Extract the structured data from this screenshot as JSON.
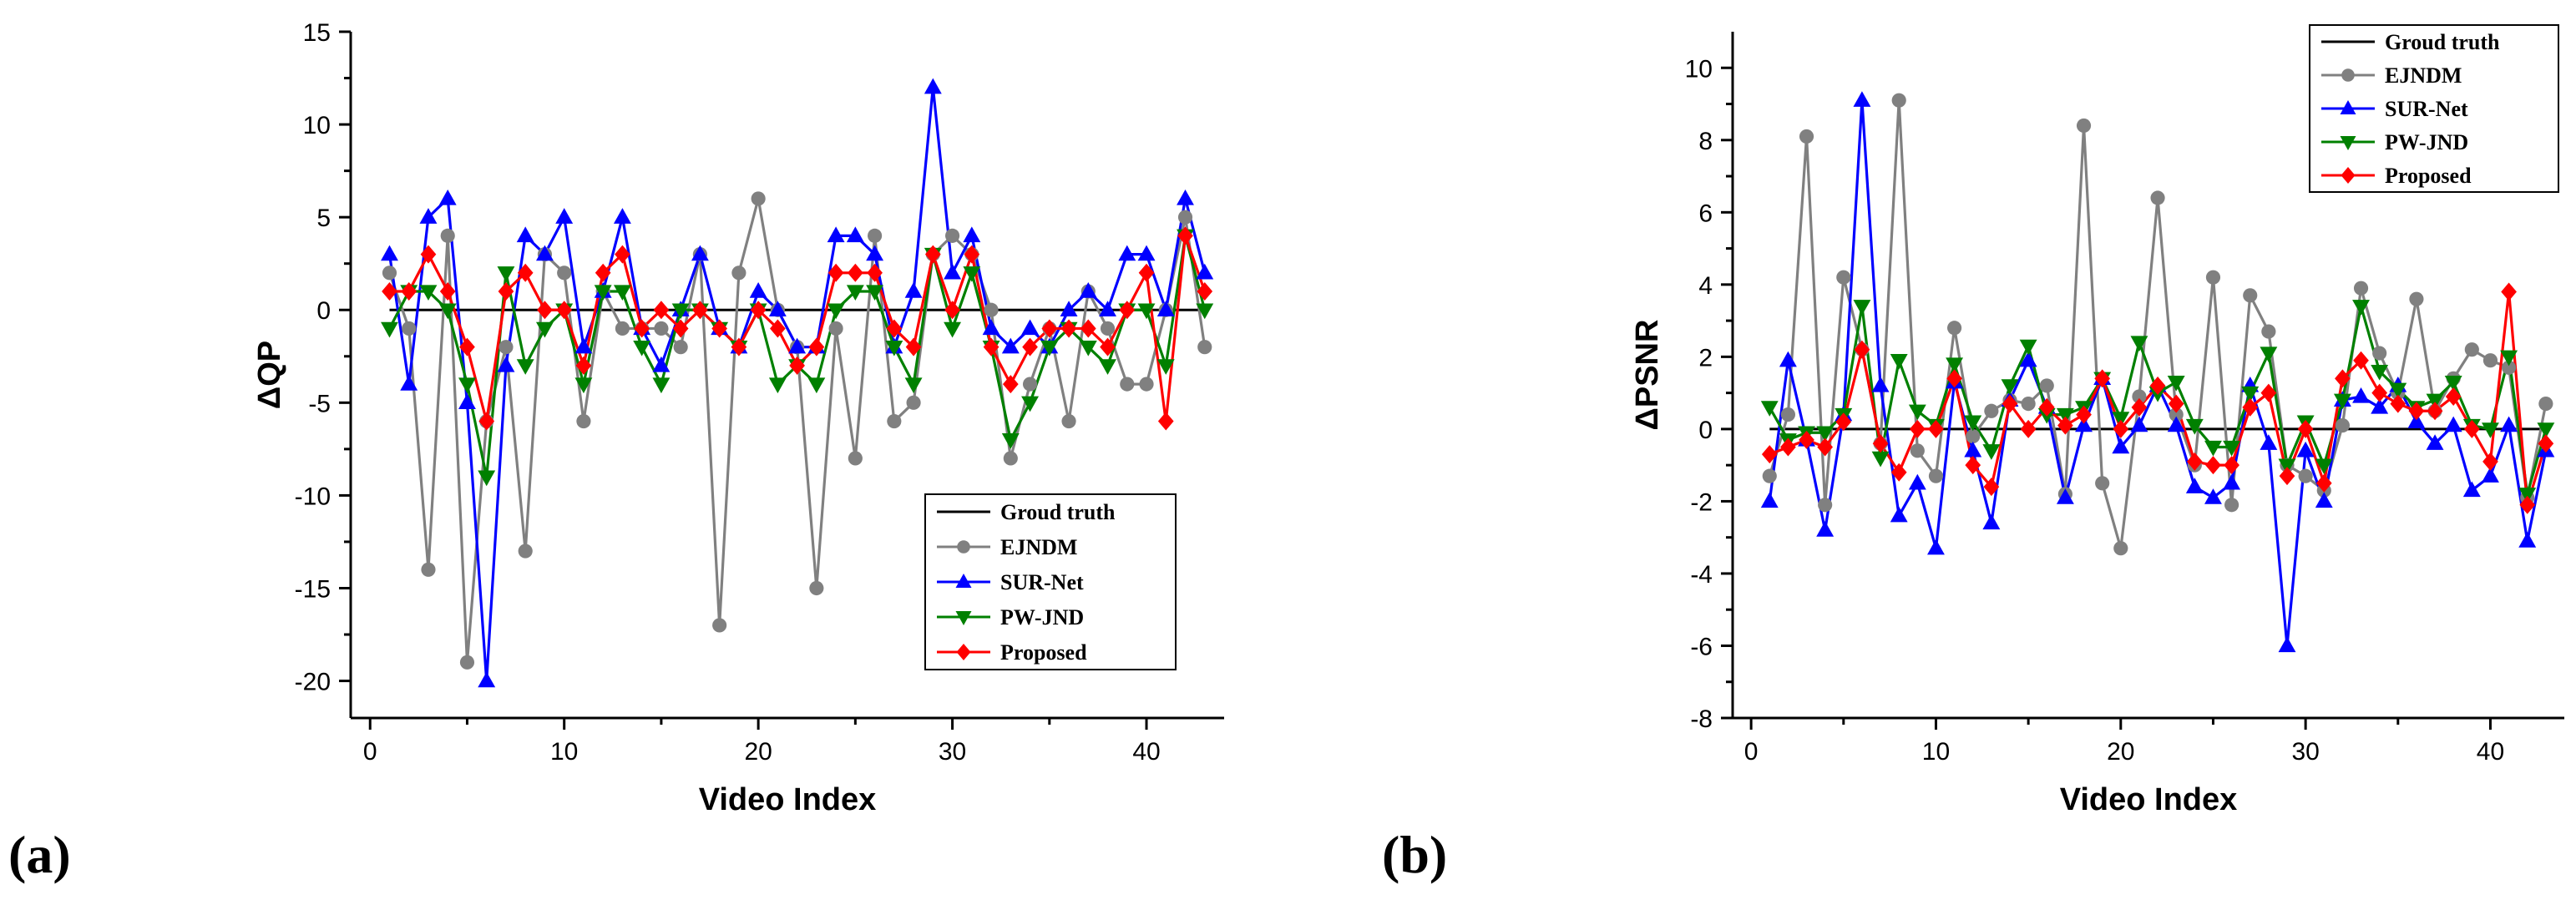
{
  "panels": [
    {
      "label": "(a)"
    },
    {
      "label": "(b)"
    }
  ],
  "chart_data": [
    {
      "type": "line",
      "panel": "(a)",
      "xlabel": "Video Index",
      "ylabel": "ΔQP",
      "xlim": [
        -1,
        44
      ],
      "ylim": [
        -22,
        15
      ],
      "xticks": [
        0,
        10,
        20,
        30,
        40
      ],
      "yticks": [
        15,
        10,
        5,
        0,
        -5,
        -10,
        -15,
        -20
      ],
      "legend_position": "bottom-right",
      "x": [
        1,
        2,
        3,
        4,
        5,
        6,
        7,
        8,
        9,
        10,
        11,
        12,
        13,
        14,
        15,
        16,
        17,
        18,
        19,
        20,
        21,
        22,
        23,
        24,
        25,
        26,
        27,
        28,
        29,
        30,
        31,
        32,
        33,
        34,
        35,
        36,
        37,
        38,
        39,
        40,
        41,
        42,
        43
      ],
      "ground_truth": {
        "name": "Groud truth",
        "value": 0,
        "x_range": [
          1,
          43
        ],
        "color": "#000000"
      },
      "series": [
        {
          "name": "EJNDM",
          "marker": "circle",
          "color": "#808080",
          "values": [
            2,
            -1,
            -14,
            4,
            -19,
            -6,
            -2,
            -13,
            3,
            2,
            -6,
            1,
            -1,
            -1,
            -1,
            -2,
            3,
            -17,
            2,
            6,
            0,
            -2,
            -15,
            -1,
            -8,
            4,
            -6,
            -5,
            3,
            4,
            3,
            0,
            -8,
            -4,
            -1,
            -6,
            1,
            -1,
            -4,
            -4,
            0,
            5,
            -2
          ]
        },
        {
          "name": "SUR-Net",
          "marker": "triangle-up",
          "color": "#0000FF",
          "values": [
            3,
            -4,
            5,
            6,
            -5,
            -20,
            -3,
            4,
            3,
            5,
            -2,
            1,
            5,
            -1,
            -3,
            0,
            3,
            -1,
            -2,
            1,
            0,
            -2,
            -2,
            4,
            4,
            3,
            -2,
            1,
            12,
            2,
            4,
            -1,
            -2,
            -1,
            -2,
            0,
            1,
            0,
            3,
            3,
            0,
            6,
            2
          ]
        },
        {
          "name": "PW-JND",
          "marker": "triangle-down",
          "color": "#008000",
          "values": [
            -1,
            1,
            1,
            0,
            -4,
            -9,
            2,
            -3,
            -1,
            0,
            -4,
            1,
            1,
            -2,
            -4,
            0,
            0,
            -1,
            -2,
            0,
            -4,
            -3,
            -4,
            0,
            1,
            1,
            -2,
            -4,
            3,
            -1,
            2,
            -2,
            -7,
            -5,
            -2,
            -1,
            -2,
            -3,
            0,
            0,
            -3,
            4,
            0
          ]
        },
        {
          "name": "Proposed",
          "marker": "diamond",
          "color": "#FF0000",
          "values": [
            1,
            1,
            3,
            1,
            -2,
            -6,
            1,
            2,
            0,
            0,
            -3,
            2,
            3,
            -1,
            0,
            -1,
            0,
            -1,
            -2,
            0,
            -1,
            -3,
            -2,
            2,
            2,
            2,
            -1,
            -2,
            3,
            0,
            3,
            -2,
            -4,
            -2,
            -1,
            -1,
            -1,
            -2,
            0,
            2,
            -6,
            4,
            1
          ]
        }
      ]
    },
    {
      "type": "line",
      "panel": "(b)",
      "xlabel": "Video Index",
      "ylabel": "ΔPSNR",
      "xlim": [
        -1,
        44
      ],
      "ylim": [
        -8,
        11
      ],
      "xticks": [
        0,
        10,
        20,
        30,
        40
      ],
      "yticks": [
        10,
        8,
        6,
        4,
        2,
        0,
        -2,
        -4,
        -6,
        -8
      ],
      "legend_position": "top-right",
      "x": [
        1,
        2,
        3,
        4,
        5,
        6,
        7,
        8,
        9,
        10,
        11,
        12,
        13,
        14,
        15,
        16,
        17,
        18,
        19,
        20,
        21,
        22,
        23,
        24,
        25,
        26,
        27,
        28,
        29,
        30,
        31,
        32,
        33,
        34,
        35,
        36,
        37,
        38,
        39,
        40,
        41,
        42,
        43
      ],
      "ground_truth": {
        "name": "Groud truth",
        "value": 0,
        "x_range": [
          1,
          43
        ],
        "color": "#000000"
      },
      "series": [
        {
          "name": "EJNDM",
          "marker": "circle",
          "color": "#808080",
          "values": [
            -1.3,
            0.4,
            8.1,
            -2.1,
            4.2,
            2.2,
            -0.4,
            9.1,
            -0.6,
            -1.3,
            2.8,
            -0.2,
            0.5,
            0.8,
            0.7,
            1.2,
            -1.8,
            8.4,
            -1.5,
            -3.3,
            0.9,
            6.4,
            0.4,
            -1.0,
            4.2,
            -2.1,
            3.7,
            2.7,
            -1.0,
            -1.3,
            -1.7,
            0.1,
            3.9,
            2.1,
            1.0,
            3.6,
            0.5,
            1.4,
            2.2,
            1.9,
            1.7,
            -1.9,
            0.7
          ]
        },
        {
          "name": "SUR-Net",
          "marker": "triangle-up",
          "color": "#0000FF",
          "values": [
            -2.0,
            1.9,
            -0.3,
            -2.8,
            0.4,
            9.1,
            1.2,
            -2.4,
            -1.5,
            -3.3,
            1.3,
            -0.6,
            -2.6,
            0.8,
            1.9,
            0.6,
            -1.9,
            0.1,
            1.4,
            -0.5,
            0.1,
            1.2,
            0.1,
            -1.6,
            -1.9,
            -1.5,
            1.2,
            -0.4,
            -6.0,
            -0.6,
            -2.0,
            0.8,
            0.9,
            0.6,
            1.2,
            0.2,
            -0.4,
            0.1,
            -1.7,
            -1.3,
            0.1,
            -3.1,
            -0.6
          ]
        },
        {
          "name": "PW-JND",
          "marker": "triangle-down",
          "color": "#008000",
          "values": [
            0.6,
            -0.3,
            -0.1,
            -0.1,
            0.4,
            3.4,
            -0.8,
            1.9,
            0.5,
            0.1,
            1.8,
            0.2,
            -0.6,
            1.2,
            2.3,
            0.4,
            0.4,
            0.6,
            1.4,
            0.3,
            2.4,
            1.0,
            1.3,
            0.1,
            -0.5,
            -0.5,
            1.0,
            2.1,
            -1.0,
            0.2,
            -1.0,
            0.8,
            3.4,
            1.6,
            1.1,
            0.6,
            0.8,
            1.3,
            0.1,
            0.0,
            2.0,
            -1.8,
            0.0
          ]
        },
        {
          "name": "Proposed",
          "marker": "diamond",
          "color": "#FF0000",
          "values": [
            -0.7,
            -0.5,
            -0.3,
            -0.5,
            0.2,
            2.2,
            -0.4,
            -1.2,
            0.0,
            0.0,
            1.4,
            -1.0,
            -1.6,
            0.7,
            0.0,
            0.6,
            0.1,
            0.4,
            1.4,
            0.0,
            0.6,
            1.2,
            0.7,
            -0.9,
            -1.0,
            -1.0,
            0.6,
            1.0,
            -1.3,
            0.0,
            -1.5,
            1.4,
            1.9,
            1.0,
            0.7,
            0.5,
            0.5,
            0.9,
            0.0,
            -0.9,
            3.8,
            -2.1,
            -0.4
          ]
        }
      ]
    }
  ]
}
